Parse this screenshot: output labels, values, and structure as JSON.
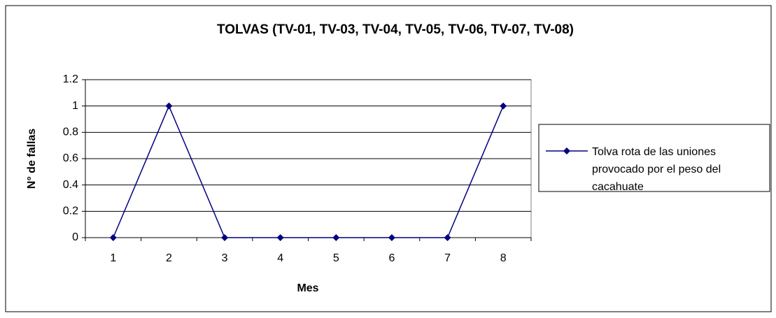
{
  "chart_data": {
    "type": "line",
    "title": "TOLVAS (TV-01, TV-03, TV-04, TV-05, TV-06, TV-07, TV-08)",
    "x_label": "Mes",
    "y_label": "N° de fallas",
    "categories": [
      "1",
      "2",
      "3",
      "4",
      "5",
      "6",
      "7",
      "8"
    ],
    "series": [
      {
        "name": "Tolva rota de las uniones provocado por el peso del cacahuate",
        "color": "#000080",
        "values": [
          0,
          1,
          0,
          0,
          0,
          0,
          0,
          1
        ]
      }
    ],
    "ylim": [
      0,
      1.2
    ],
    "yticks": [
      0,
      0.2,
      0.4,
      0.6,
      0.8,
      1,
      1.2
    ],
    "grid": true,
    "legend": "right"
  }
}
